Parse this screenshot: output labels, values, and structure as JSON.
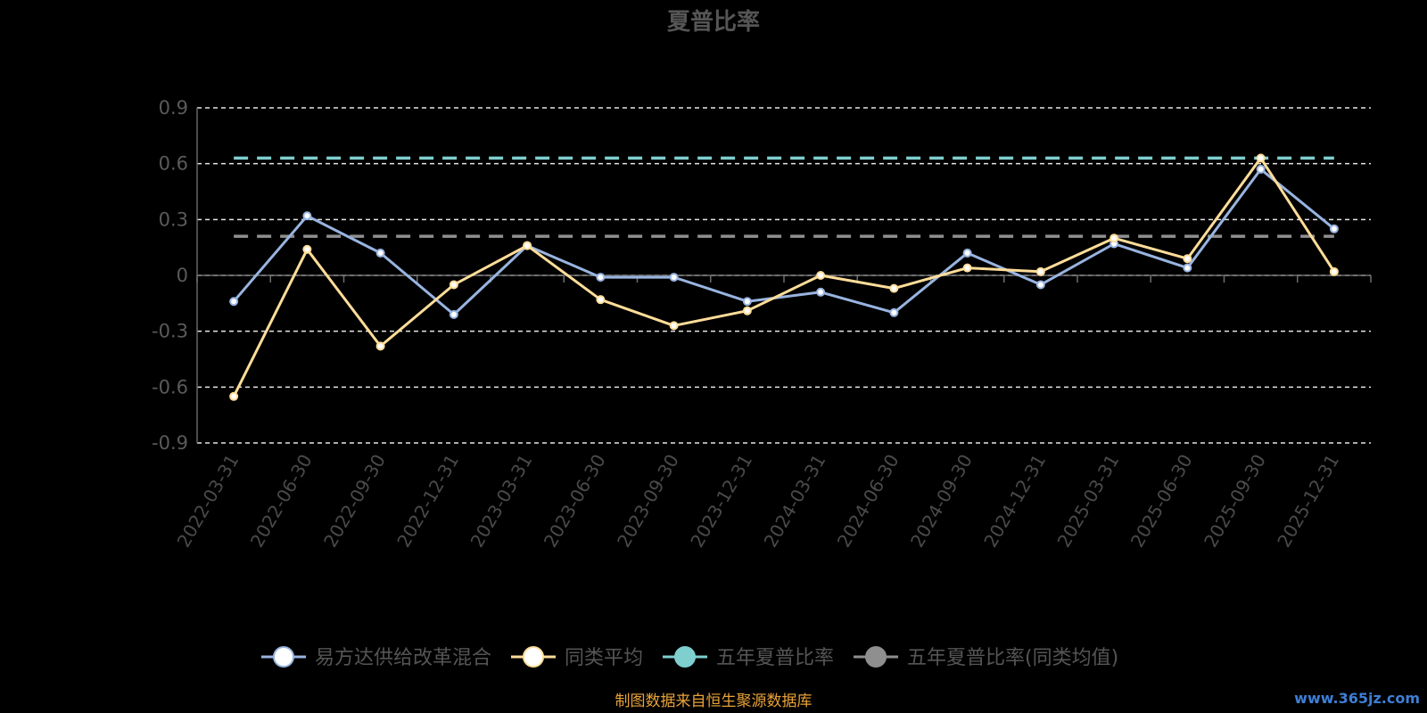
{
  "chart_data": {
    "type": "line",
    "title": "夏普比率",
    "categories": [
      "2022-03-31",
      "2022-06-30",
      "2022-09-30",
      "2022-12-31",
      "2023-03-31",
      "2023-06-30",
      "2023-09-30",
      "2023-12-31",
      "2024-03-31",
      "2024-06-30",
      "2024-09-30",
      "2024-12-31",
      "2025-03-31",
      "2025-06-30",
      "2025-09-30",
      "2025-12-31"
    ],
    "y_ticks": [
      "0.9",
      "0.6",
      "0.3",
      "0",
      "-0.3",
      "-0.6",
      "-0.9"
    ],
    "ylim": [
      -0.9,
      0.9
    ],
    "grid": true,
    "legend_position": "bottom",
    "series": [
      {
        "name": "易方达供给改革混合",
        "color": "#98b4e0",
        "values": [
          -0.14,
          0.32,
          0.12,
          -0.21,
          0.16,
          -0.01,
          -0.01,
          -0.14,
          -0.09,
          -0.2,
          0.12,
          -0.05,
          0.17,
          0.04,
          0.57,
          0.25
        ]
      },
      {
        "name": "同类平均",
        "color": "#ffdd99",
        "values": [
          -0.65,
          0.14,
          -0.38,
          -0.05,
          0.16,
          -0.13,
          -0.27,
          -0.19,
          0.0,
          -0.07,
          0.04,
          0.02,
          0.2,
          0.09,
          0.63,
          0.02
        ]
      },
      {
        "name": "五年夏普比率",
        "color": "#7fcfcf",
        "type": "reference",
        "value": 0.63
      },
      {
        "name": "五年夏普比率(同类均值)",
        "color": "#8f8f8f",
        "type": "reference",
        "value": 0.21
      }
    ]
  },
  "source_text": "制图数据来自恒生聚源数据库",
  "source_color": "#e8a23a",
  "watermark_text": "www.365jz.com",
  "watermark_color": "#3d7fd6"
}
